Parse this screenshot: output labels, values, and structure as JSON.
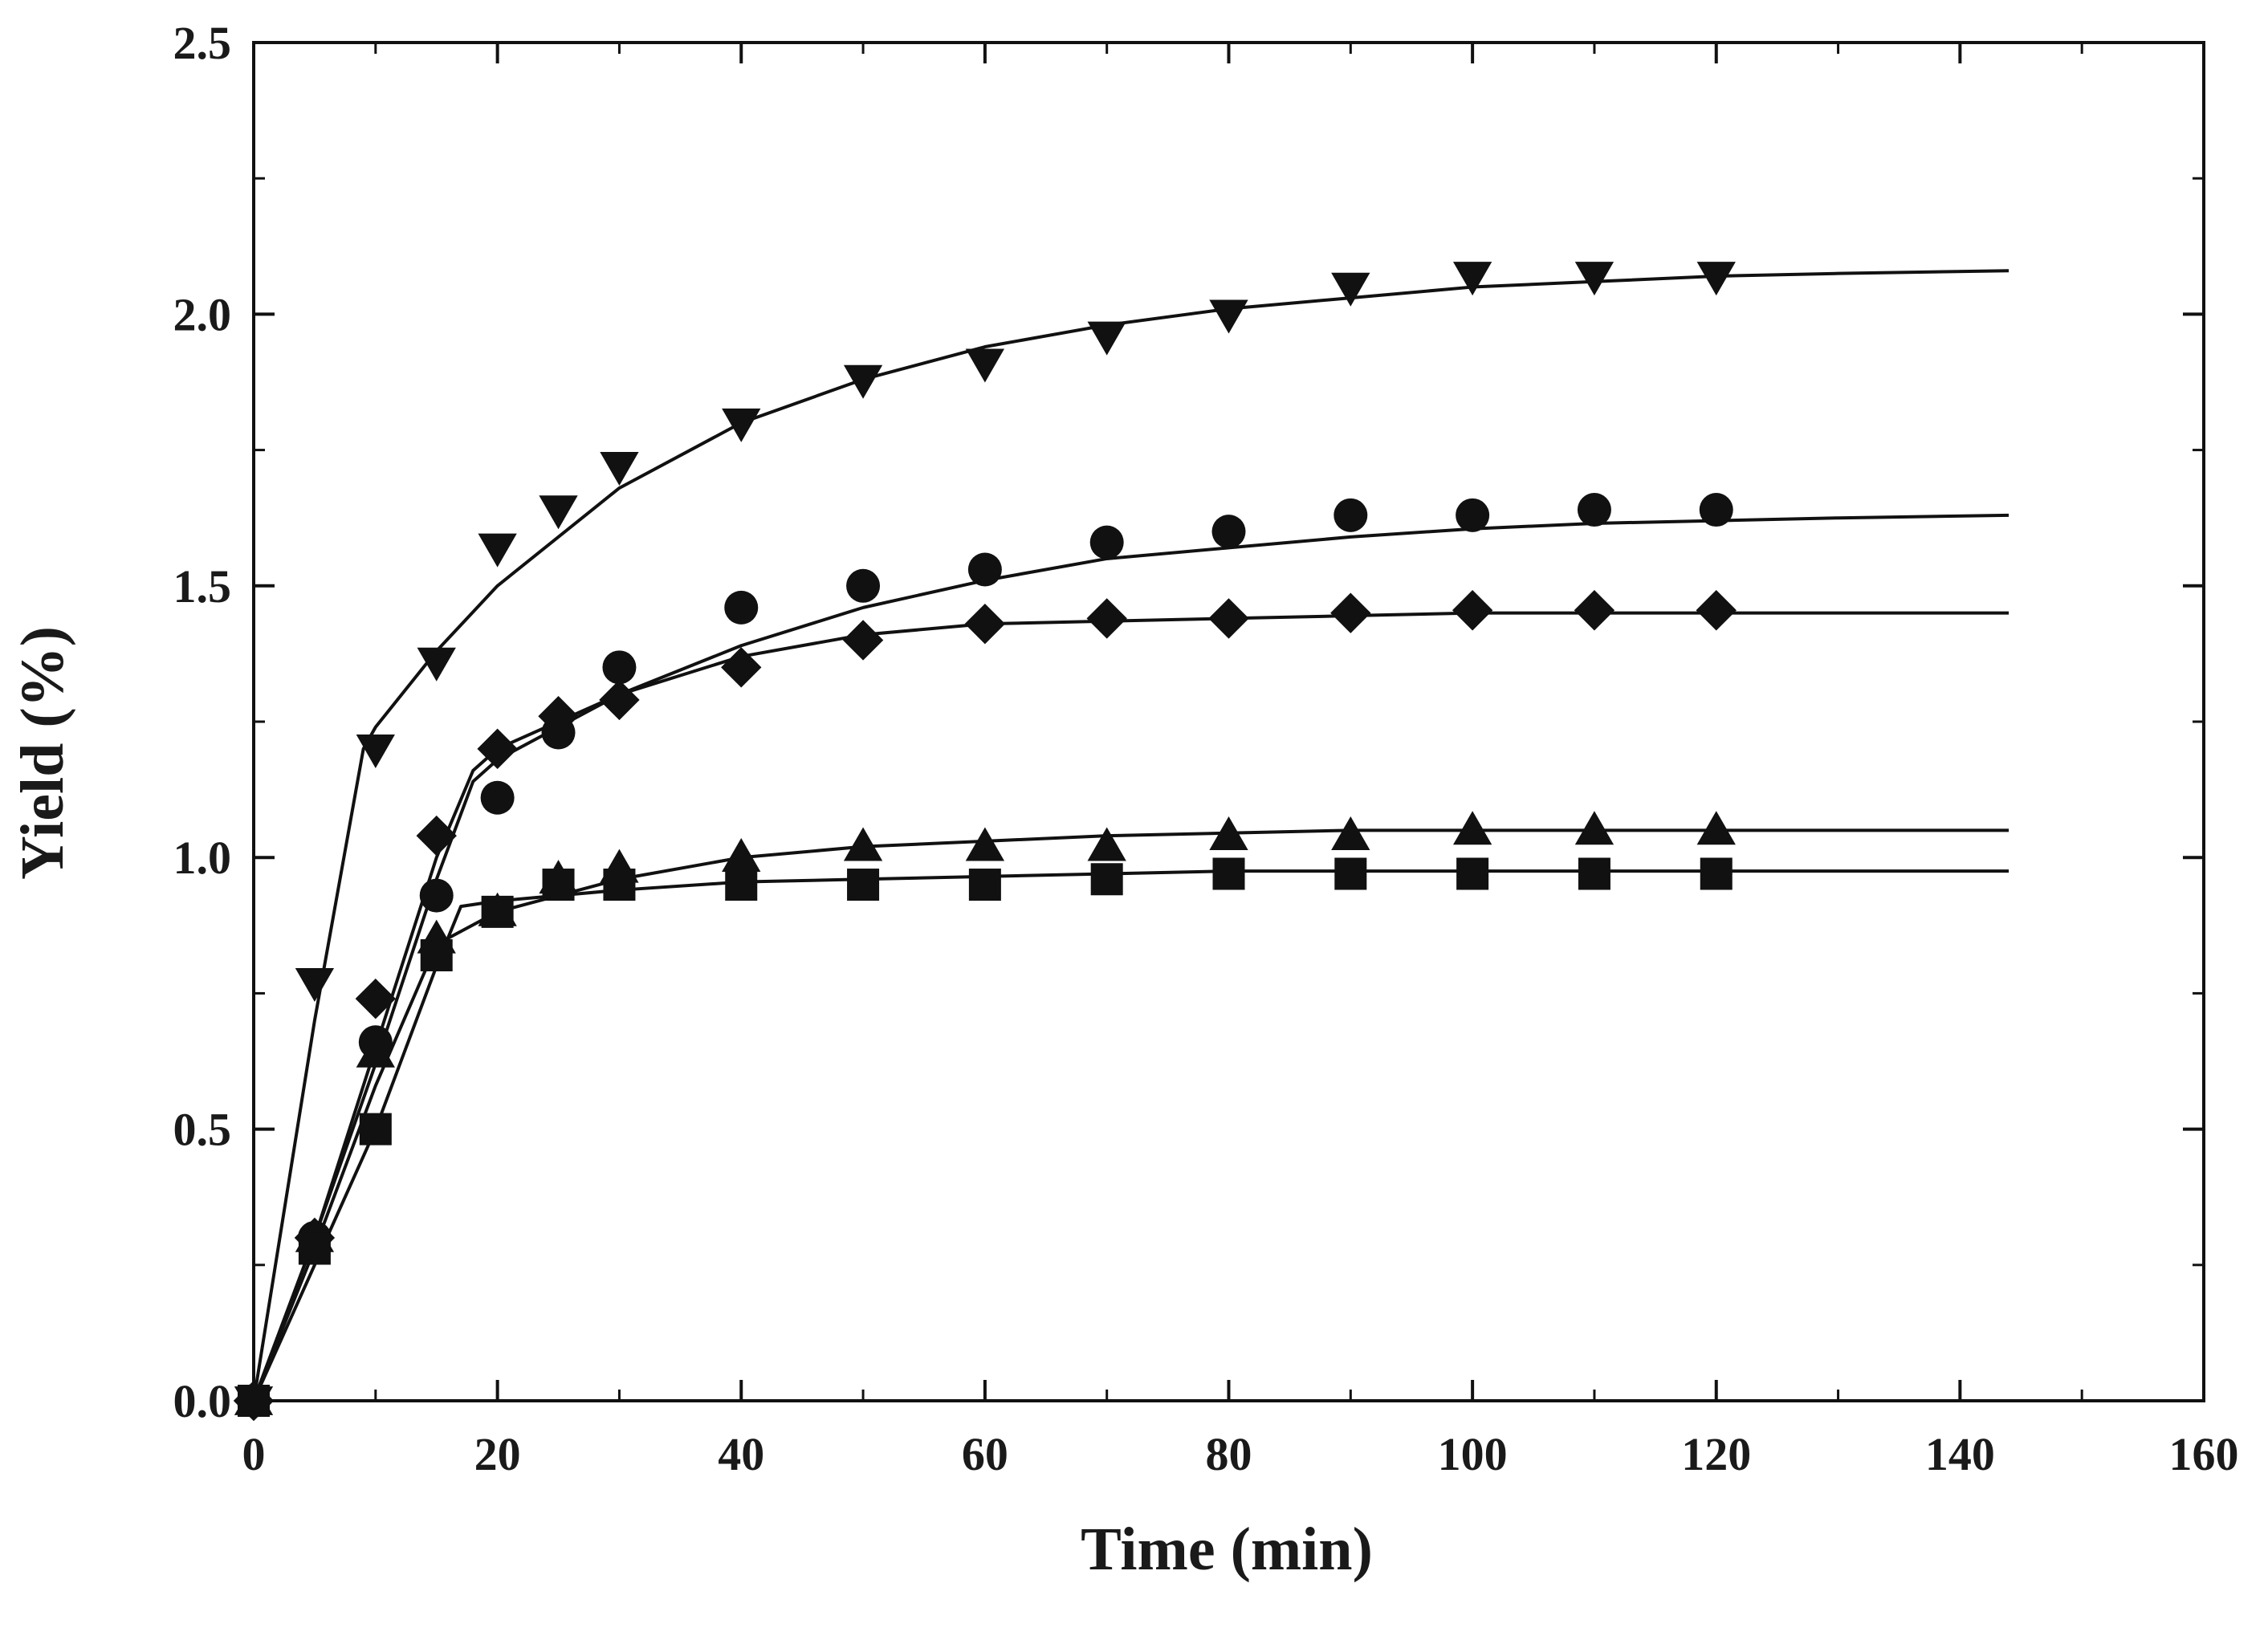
{
  "chart_data": {
    "type": "scatter",
    "title": "",
    "xlabel": "Time (min)",
    "ylabel": "Yield (%)",
    "xlim": [
      0,
      160
    ],
    "ylim": [
      0,
      2.5
    ],
    "xticks": [
      0,
      20,
      40,
      60,
      80,
      100,
      120,
      140,
      160
    ],
    "yticks": [
      0.0,
      0.5,
      1.0,
      1.5,
      2.0,
      2.5
    ],
    "xtick_labels": [
      "0",
      "20",
      "40",
      "60",
      "80",
      "100",
      "120",
      "140",
      "160"
    ],
    "ytick_labels": [
      "0.0",
      "0.5",
      "1.0",
      "1.5",
      "2.0",
      "2.5"
    ],
    "grid": false,
    "legend": "none",
    "colors": {
      "ink": "#111111"
    },
    "series": [
      {
        "name": "down-triangle",
        "marker": "triangle-down",
        "x": [
          0,
          5,
          10,
          15,
          20,
          25,
          30,
          40,
          50,
          60,
          70,
          80,
          90,
          100,
          110,
          120
        ],
        "y": [
          0,
          0.77,
          1.2,
          1.36,
          1.57,
          1.64,
          1.72,
          1.8,
          1.88,
          1.91,
          1.96,
          2.0,
          2.05,
          2.07,
          2.07,
          2.07
        ],
        "fit": {
          "x": [
            0,
            5,
            9,
            10,
            15,
            20,
            30,
            40,
            50,
            60,
            70,
            80,
            90,
            100,
            110,
            120,
            130,
            144
          ],
          "y": [
            0,
            0.7,
            1.2,
            1.24,
            1.38,
            1.5,
            1.68,
            1.8,
            1.88,
            1.94,
            1.98,
            2.01,
            2.03,
            2.05,
            2.06,
            2.07,
            2.075,
            2.08
          ]
        }
      },
      {
        "name": "circle",
        "marker": "circle",
        "x": [
          0,
          5,
          10,
          15,
          20,
          25,
          30,
          40,
          50,
          60,
          70,
          80,
          90,
          100,
          110,
          120
        ],
        "y": [
          0,
          0.3,
          0.66,
          0.93,
          1.11,
          1.23,
          1.35,
          1.46,
          1.5,
          1.53,
          1.58,
          1.6,
          1.63,
          1.63,
          1.64,
          1.64
        ],
        "fit": {
          "x": [
            0,
            5,
            10,
            15,
            18,
            20,
            30,
            40,
            50,
            60,
            70,
            80,
            90,
            100,
            110,
            120,
            130,
            144
          ],
          "y": [
            0,
            0.3,
            0.62,
            0.96,
            1.14,
            1.18,
            1.3,
            1.39,
            1.46,
            1.51,
            1.55,
            1.57,
            1.59,
            1.605,
            1.615,
            1.62,
            1.625,
            1.63
          ]
        }
      },
      {
        "name": "diamond",
        "marker": "diamond",
        "x": [
          0,
          5,
          10,
          15,
          20,
          25,
          30,
          40,
          50,
          60,
          70,
          80,
          90,
          100,
          110,
          120
        ],
        "y": [
          0,
          0.3,
          0.74,
          1.04,
          1.2,
          1.26,
          1.29,
          1.35,
          1.4,
          1.43,
          1.44,
          1.44,
          1.45,
          1.455,
          1.455,
          1.455
        ],
        "fit": {
          "x": [
            0,
            5,
            10,
            15,
            18,
            20,
            30,
            40,
            50,
            60,
            70,
            80,
            90,
            100,
            110,
            120,
            130,
            144
          ],
          "y": [
            0,
            0.3,
            0.65,
            1.0,
            1.16,
            1.2,
            1.3,
            1.37,
            1.41,
            1.43,
            1.435,
            1.44,
            1.445,
            1.45,
            1.45,
            1.45,
            1.45,
            1.45
          ]
        }
      },
      {
        "name": "triangle-up",
        "marker": "triangle-up",
        "x": [
          0,
          5,
          10,
          15,
          20,
          25,
          30,
          40,
          50,
          60,
          70,
          80,
          90,
          100,
          110,
          120
        ],
        "y": [
          0,
          0.3,
          0.64,
          0.85,
          0.9,
          0.96,
          0.98,
          1.0,
          1.02,
          1.02,
          1.02,
          1.04,
          1.04,
          1.05,
          1.05,
          1.05
        ],
        "fit": {
          "x": [
            0,
            5,
            10,
            15,
            20,
            30,
            40,
            50,
            60,
            70,
            80,
            90,
            100,
            110,
            120,
            130,
            144
          ],
          "y": [
            0,
            0.28,
            0.58,
            0.84,
            0.9,
            0.96,
            1.0,
            1.02,
            1.03,
            1.04,
            1.045,
            1.05,
            1.05,
            1.05,
            1.05,
            1.05,
            1.05
          ]
        }
      },
      {
        "name": "square",
        "marker": "square",
        "x": [
          0,
          5,
          10,
          15,
          20,
          25,
          30,
          40,
          50,
          60,
          70,
          80,
          90,
          100,
          110,
          120
        ],
        "y": [
          0,
          0.28,
          0.5,
          0.82,
          0.9,
          0.95,
          0.95,
          0.95,
          0.95,
          0.95,
          0.96,
          0.97,
          0.97,
          0.97,
          0.97,
          0.97
        ],
        "fit": {
          "x": [
            0,
            5,
            10,
            15,
            17,
            20,
            30,
            40,
            50,
            60,
            70,
            80,
            90,
            100,
            110,
            120,
            130,
            144
          ],
          "y": [
            0,
            0.25,
            0.5,
            0.8,
            0.91,
            0.92,
            0.94,
            0.955,
            0.96,
            0.965,
            0.97,
            0.975,
            0.975,
            0.975,
            0.975,
            0.975,
            0.975,
            0.975
          ]
        }
      }
    ]
  }
}
